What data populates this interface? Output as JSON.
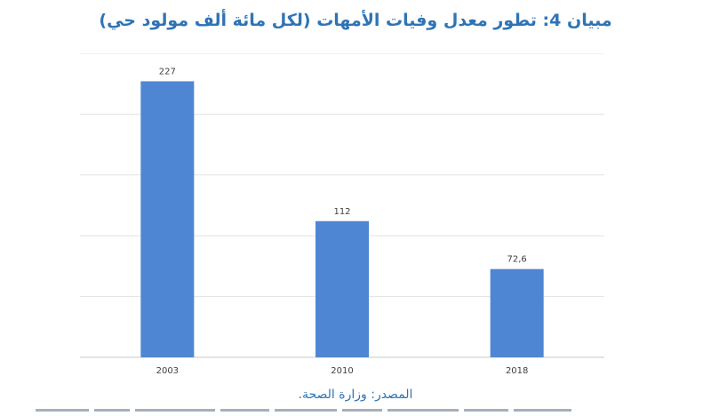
{
  "title": "مبيان 4: تطور معدل وفيات الأمهات (لكل مائة ألف مولود حي)",
  "source": "المصدر: وزارة الصحة.",
  "colors": {
    "bar": "#4f86d3",
    "title": "#2e74b5",
    "grid": "#e3e3e3",
    "axis": "#c8c8c8"
  },
  "chart_data": {
    "type": "bar",
    "categories": [
      "2003",
      "2010",
      "2018"
    ],
    "values": [
      227,
      112,
      72.6
    ],
    "data_labels": [
      "227",
      "112",
      "72,6"
    ],
    "title": "مبيان 4: تطور معدل وفيات الأمهات (لكل مائة ألف مولود حي)",
    "xlabel": "",
    "ylabel": "",
    "ylim": [
      0,
      250
    ],
    "grid": true,
    "legend": "none"
  }
}
